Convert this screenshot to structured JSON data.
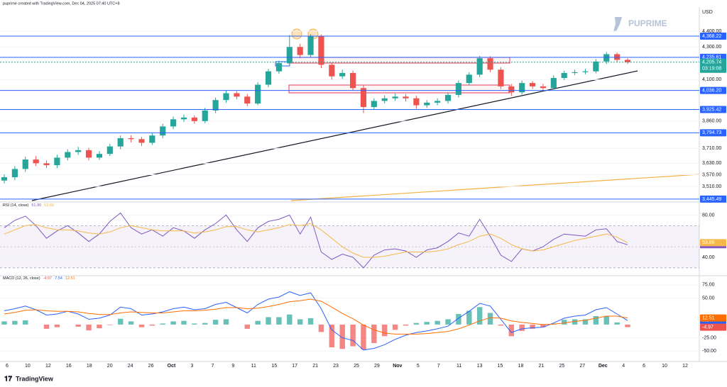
{
  "header": "puprime created with TradingView.com, Dec 04, 2025 07:40 UTC+8",
  "watermark": "PUPRIME",
  "footer": "TradingView",
  "chart_data": [
    {
      "type": "candlestick",
      "currency": "USD",
      "log_scale": true,
      "ylim": [
        3431,
        4557
      ],
      "yticks": [
        {
          "value": 4400,
          "label": "4,400.00"
        },
        {
          "value": 4300,
          "label": "4,300.00"
        },
        {
          "value": 4100,
          "label": "4,100.00"
        },
        {
          "value": 3860,
          "label": "3,860.00"
        },
        {
          "value": 3710,
          "label": "3,710.00"
        },
        {
          "value": 3630,
          "label": "3,630.00"
        },
        {
          "value": 3570,
          "label": "3,570.00"
        },
        {
          "value": 3510,
          "label": "3,510.00"
        }
      ],
      "open": [
        3540,
        3557,
        3600,
        3650,
        3630,
        3620,
        3660,
        3690,
        3700,
        3660,
        3680,
        3720,
        3765,
        3760,
        3740,
        3780,
        3830,
        3870,
        3880,
        3860,
        3920,
        3980,
        4020,
        4000,
        3960,
        4070,
        4150,
        4200,
        4300,
        4250,
        4370,
        4190,
        4120,
        4140,
        4050,
        3940,
        3975,
        3990,
        4000,
        3990,
        3950,
        3965,
        3975,
        4010,
        4080,
        4130,
        4230,
        4160,
        4060,
        4025,
        4080,
        4060,
        4050,
        4110,
        4140,
        4145,
        4150,
        4210,
        4255,
        4220
      ],
      "high": [
        3572,
        3615,
        3665,
        3668,
        3645,
        3675,
        3705,
        3718,
        3712,
        3695,
        3735,
        3780,
        3782,
        3772,
        3795,
        3845,
        3885,
        3898,
        3892,
        3935,
        3995,
        4035,
        4032,
        4015,
        4085,
        4165,
        4215,
        4375,
        4320,
        4381,
        4378,
        4205,
        4160,
        4155,
        4065,
        3990,
        4008,
        4018,
        4015,
        4005,
        3980,
        3990,
        4025,
        4095,
        4145,
        4245,
        4242,
        4175,
        4075,
        4095,
        4092,
        4075,
        4125,
        4155,
        4160,
        4165,
        4225,
        4268,
        4265,
        4230
      ],
      "low": [
        3525,
        3542,
        3585,
        3615,
        3605,
        3605,
        3645,
        3675,
        3645,
        3648,
        3668,
        3705,
        3742,
        3722,
        3728,
        3765,
        3815,
        3855,
        3845,
        3848,
        3905,
        3965,
        3985,
        3945,
        3950,
        4055,
        4135,
        4185,
        4230,
        4235,
        4170,
        4100,
        4105,
        4035,
        3905,
        3925,
        3960,
        3975,
        3972,
        3930,
        3935,
        3950,
        3960,
        3995,
        4065,
        4115,
        4145,
        4045,
        4005,
        4012,
        4045,
        4035,
        4040,
        4098,
        4128,
        4132,
        4138,
        4195,
        4205,
        4195
      ],
      "close": [
        3557,
        3600,
        3650,
        3630,
        3620,
        3660,
        3690,
        3700,
        3660,
        3680,
        3720,
        3765,
        3760,
        3740,
        3780,
        3830,
        3870,
        3880,
        3860,
        3920,
        3980,
        4020,
        4000,
        3960,
        4070,
        4150,
        4200,
        4300,
        4250,
        4370,
        4190,
        4120,
        4140,
        4050,
        3940,
        3975,
        3990,
        4000,
        3990,
        3950,
        3965,
        3975,
        4010,
        4080,
        4130,
        4230,
        4160,
        4060,
        4025,
        4080,
        4060,
        4050,
        4110,
        4140,
        4145,
        4150,
        4210,
        4255,
        4220,
        4205.74
      ],
      "up_color": "#26a69a",
      "down_color": "#ef5350",
      "level_color": "#2962ff",
      "levels": [
        {
          "value": 4368.22,
          "label": "4,368.22"
        },
        {
          "value": 4235.61,
          "label": "4,235.61"
        },
        {
          "value": 4036.2,
          "label": "4,036.20"
        },
        {
          "value": 3925.42,
          "label": "3,925.42"
        },
        {
          "value": 3794.73,
          "label": "3,794.73"
        },
        {
          "value": 3445.49,
          "label": "3,445.49"
        }
      ],
      "last_price": {
        "value": 4205.74,
        "label": "4,205.74"
      },
      "countdown": "03:19:08",
      "x_labels": [
        "6",
        "10",
        "12",
        "16",
        "18",
        "20",
        "24",
        "26",
        "Oct",
        "3",
        "7",
        "9",
        "11",
        "15",
        "17",
        "21",
        "23",
        "25",
        "29",
        "Nov",
        "5",
        "7",
        "11",
        "13",
        "15",
        "18",
        "21",
        "25",
        "27",
        "Dec",
        "4",
        "6",
        "10",
        "12"
      ]
    },
    {
      "type": "line",
      "title": "RSI (14, close)",
      "ylim": [
        23.2,
        89.7
      ],
      "yticks": [
        {
          "value": 80,
          "label": "80.00"
        },
        {
          "value": 40,
          "label": "40.00"
        }
      ],
      "band": [
        30,
        70
      ],
      "midline": 50,
      "band_color": "#7e57c2",
      "series": [
        {
          "color": "#7e57c2",
          "last": {
            "value": 51.9,
            "label": "51.90"
          },
          "values": [
            68,
            75,
            79,
            70,
            58,
            65,
            70,
            63,
            55,
            62,
            74,
            82,
            68,
            62,
            66,
            60,
            68,
            65,
            58,
            66,
            72,
            80,
            66,
            55,
            68,
            74,
            76,
            80,
            62,
            78,
            45,
            38,
            43,
            40,
            30,
            42,
            47,
            48,
            46,
            40,
            47,
            49,
            55,
            63,
            60,
            76,
            60,
            42,
            36,
            48,
            46,
            50,
            57,
            62,
            61,
            60,
            66,
            67,
            55,
            51.9
          ]
        },
        {
          "color": "#f7b84b",
          "last": {
            "value": 53.88,
            "label": "53.88"
          },
          "values": [
            62,
            66,
            70,
            71,
            68,
            66,
            66,
            65,
            63,
            62,
            64,
            68,
            70,
            68,
            66,
            65,
            65,
            65,
            63,
            64,
            66,
            69,
            69,
            66,
            64,
            66,
            68,
            71,
            70,
            72,
            66,
            58,
            50,
            44,
            40,
            40,
            41,
            43,
            45,
            45,
            45,
            46,
            48,
            52,
            55,
            60,
            62,
            58,
            52,
            48,
            46,
            47,
            50,
            53,
            56,
            58,
            60,
            62,
            59,
            53.88
          ]
        }
      ]
    },
    {
      "type": "macd",
      "title": "MACD (12, 26, close)",
      "ylim": [
        -69.7,
        88.2
      ],
      "yticks": [
        {
          "value": 75,
          "label": "75.00"
        },
        {
          "value": 50,
          "label": "50.00"
        },
        {
          "value": -25,
          "label": "-25.00"
        },
        {
          "value": -50,
          "label": "-50.00"
        }
      ],
      "histogram": {
        "up_color": "#26a69a",
        "down_color": "#ef5350",
        "last": {
          "value": -4.97,
          "label": "-4.97"
        },
        "values": [
          6,
          7,
          8,
          0,
          -8,
          -5,
          0,
          -4,
          -11,
          -7,
          -1,
          11,
          6,
          -5,
          -2,
          2,
          6,
          7,
          2,
          3,
          9,
          10,
          0,
          -8,
          7,
          14,
          14,
          19,
          10,
          12,
          -14,
          -43,
          -46,
          -41,
          -47,
          -35,
          -22,
          -10,
          -2,
          3,
          5,
          7,
          10,
          20,
          26,
          33,
          22,
          -2,
          -22,
          -12,
          -8,
          -5,
          2,
          9,
          10,
          10,
          16,
          16,
          4,
          -4.97
        ]
      },
      "series": [
        {
          "color": "#2962ff",
          "last": {
            "value": 7.54,
            "label": "7.54"
          },
          "values": [
            26,
            30,
            35,
            28,
            18,
            20,
            25,
            20,
            10,
            12,
            18,
            33,
            30,
            18,
            20,
            24,
            30,
            33,
            28,
            30,
            38,
            42,
            32,
            22,
            38,
            48,
            52,
            62,
            55,
            60,
            30,
            -10,
            -25,
            -30,
            -48,
            -45,
            -38,
            -28,
            -20,
            -15,
            -12,
            -8,
            -3,
            12,
            25,
            40,
            35,
            10,
            -15,
            -8,
            -6,
            -5,
            3,
            12,
            16,
            18,
            28,
            32,
            20,
            7.54
          ]
        },
        {
          "color": "#ff6d00",
          "last": {
            "value": 12.51,
            "label": "12.51"
          },
          "values": [
            20,
            23,
            27,
            28,
            26,
            25,
            25,
            24,
            21,
            19,
            19,
            22,
            24,
            23,
            22,
            22,
            24,
            26,
            26,
            27,
            29,
            32,
            32,
            30,
            31,
            34,
            38,
            43,
            45,
            48,
            44,
            33,
            21,
            11,
            -1,
            -10,
            -16,
            -18,
            -18,
            -18,
            -17,
            -15,
            -13,
            -8,
            -1,
            7,
            13,
            12,
            7,
            4,
            2,
            0,
            1,
            3,
            6,
            8,
            12,
            16,
            16,
            12.51
          ]
        }
      ]
    }
  ]
}
